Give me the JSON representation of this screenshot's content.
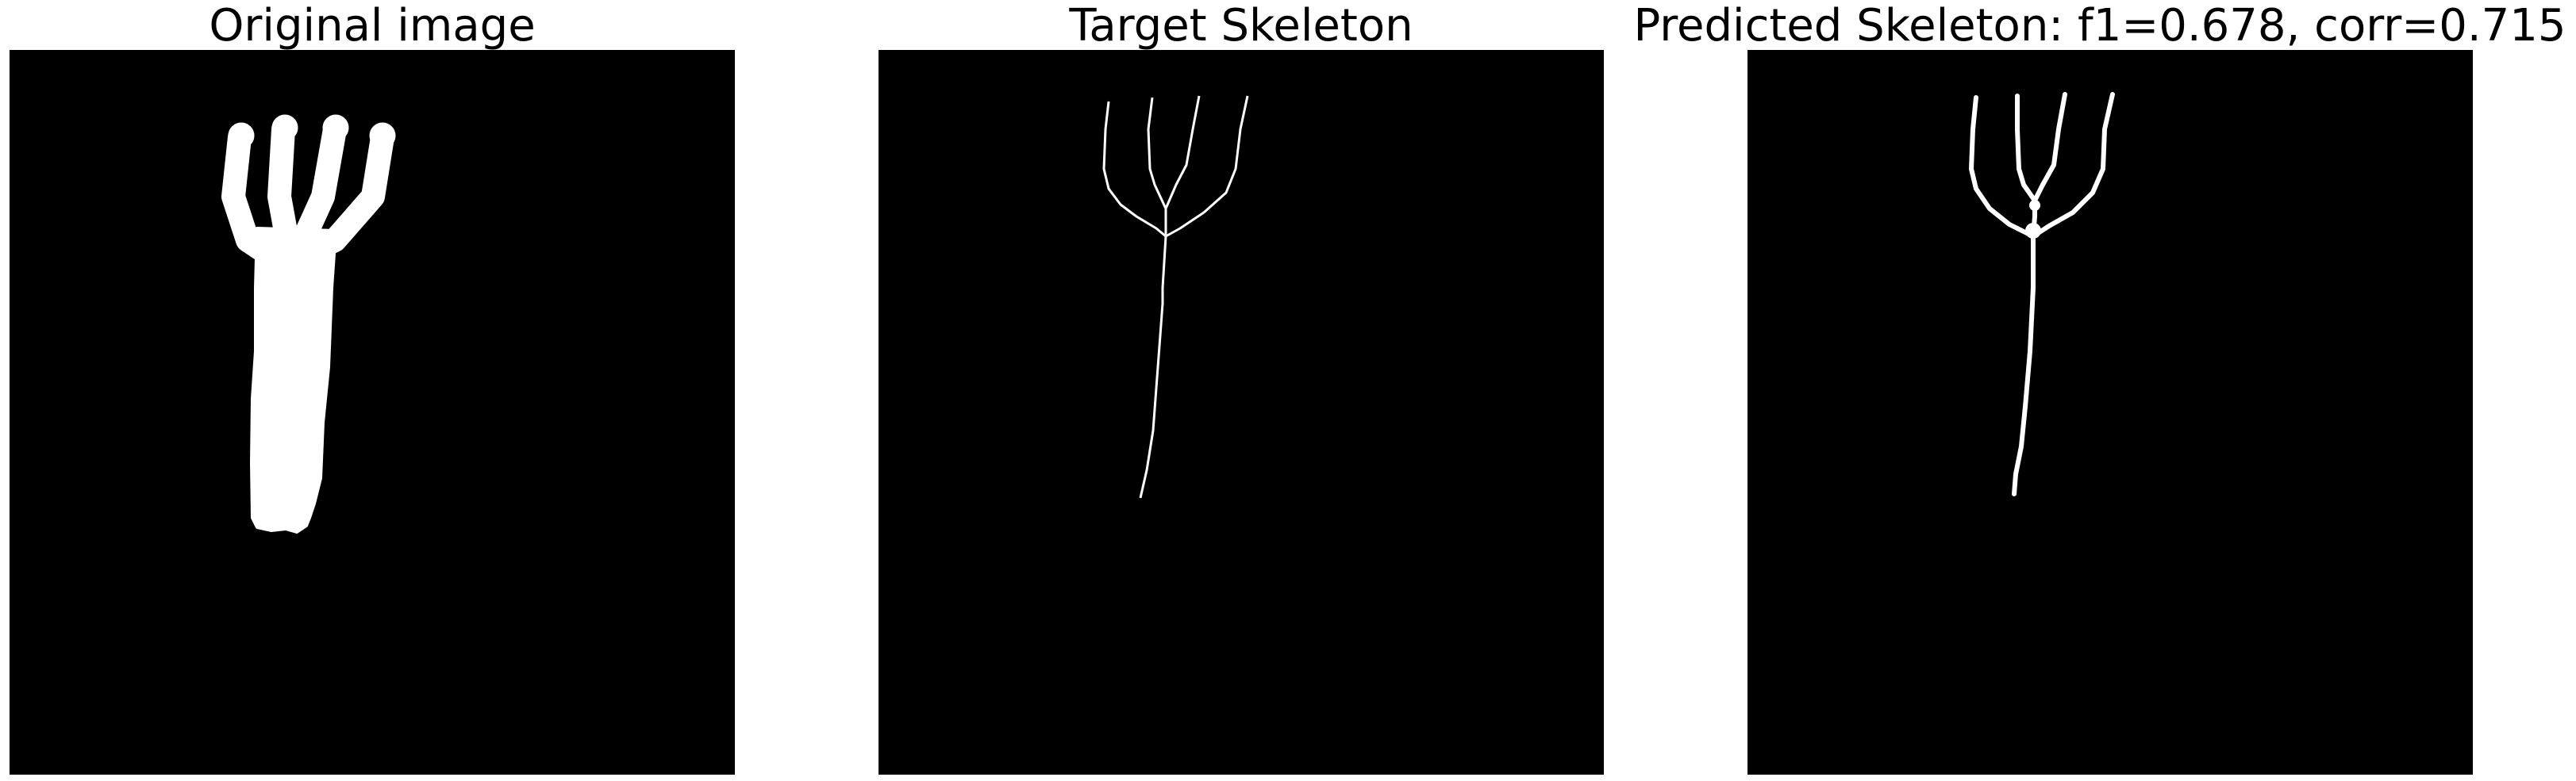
{
  "figure": {
    "panels": [
      {
        "id": "original",
        "title": "Original image",
        "background": "#000000",
        "foreground": "#ffffff"
      },
      {
        "id": "target",
        "title": "Target Skeleton",
        "background": "#000000",
        "foreground": "#ffffff"
      },
      {
        "id": "predicted",
        "title": "Predicted Skeleton: f1=0.678, corr=0.715",
        "background": "#000000",
        "foreground": "#ffffff"
      }
    ],
    "metrics": {
      "f1": 0.678,
      "corr": 0.715
    }
  }
}
